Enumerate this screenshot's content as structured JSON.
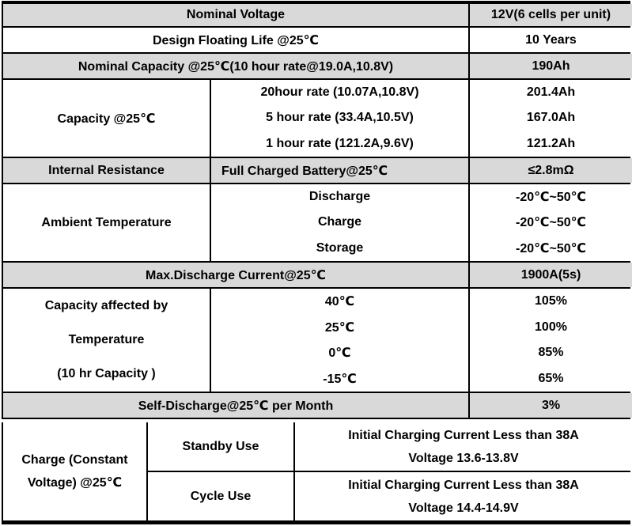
{
  "colors": {
    "header_row_bg": "#d9d9d9",
    "border": "#000000",
    "background": "#ffffff",
    "text": "#000000"
  },
  "spec": {
    "nominal_voltage": {
      "label": "Nominal Voltage",
      "value": "12V(6 cells per unit)"
    },
    "design_floating_life": {
      "label": "Design Floating Life @25℃",
      "value": "10 Years"
    },
    "nominal_capacity": {
      "label": "Nominal Capacity @25℃(10 hour rate@19.0A,10.8V)",
      "value": "190Ah"
    },
    "capacity": {
      "label": "Capacity @25℃",
      "rates": [
        {
          "condition": "20hour rate (10.07A,10.8V)",
          "value": "201.4Ah"
        },
        {
          "condition": "5 hour rate (33.4A,10.5V)",
          "value": "167.0Ah"
        },
        {
          "condition": "1 hour rate (121.2A,9.6V)",
          "value": "121.2Ah"
        }
      ]
    },
    "internal_resistance": {
      "label": "Internal Resistance",
      "condition": "Full Charged Battery@25℃",
      "value": "≤2.8mΩ"
    },
    "ambient_temperature": {
      "label": "Ambient Temperature",
      "modes": [
        {
          "condition": "Discharge",
          "value": "-20℃~50℃"
        },
        {
          "condition": "Charge",
          "value": "-20℃~50℃"
        },
        {
          "condition": "Storage",
          "value": "-20℃~50℃"
        }
      ]
    },
    "max_discharge_current": {
      "label": "Max.Discharge Current@25℃",
      "value": "1900A(5s)"
    },
    "capacity_vs_temperature": {
      "label_lines": [
        "Capacity affected by",
        "Temperature",
        "(10 hr Capacity )"
      ],
      "points": [
        {
          "condition": "40℃",
          "value": "105%"
        },
        {
          "condition": "25℃",
          "value": "100%"
        },
        {
          "condition": "0℃",
          "value": "85%"
        },
        {
          "condition": "-15℃",
          "value": "65%"
        }
      ]
    },
    "self_discharge": {
      "label": "Self-Discharge@25℃ per Month",
      "value": "3%"
    },
    "charge": {
      "label_lines": [
        "Charge (Constant",
        "Voltage) @25℃"
      ],
      "modes": [
        {
          "use": "Standby Use",
          "lines": [
            "Initial Charging Current Less than 38A",
            "Voltage 13.6-13.8V"
          ]
        },
        {
          "use": "Cycle Use",
          "lines": [
            "Initial Charging Current Less than 38A",
            "Voltage 14.4-14.9V"
          ]
        }
      ]
    }
  }
}
